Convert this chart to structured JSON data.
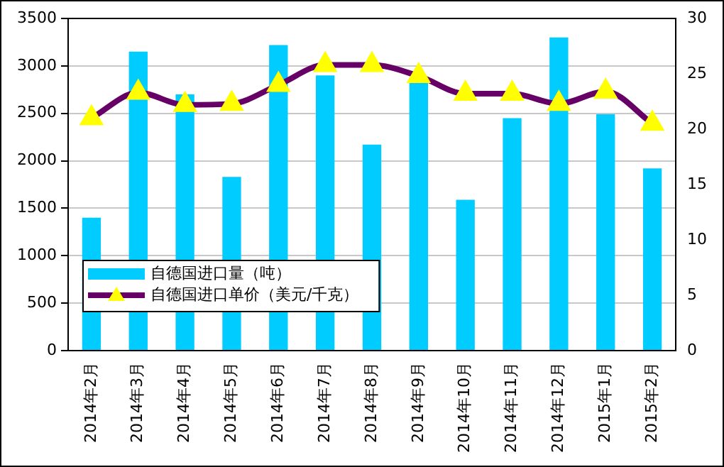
{
  "chart_data": {
    "type": "bar",
    "categories": [
      "2014年2月",
      "2014年3月",
      "2014年4月",
      "2014年5月",
      "2014年6月",
      "2014年7月",
      "2014年8月",
      "2014年9月",
      "2014年10月",
      "2014年11月",
      "2014年12月",
      "2015年1月",
      "2015年2月"
    ],
    "series": [
      {
        "name": "自德国进口量（吨）",
        "color": "#00ccff",
        "values": [
          1400,
          3150,
          2700,
          1830,
          3220,
          2900,
          2170,
          2820,
          1590,
          2450,
          3300,
          2490,
          1920
        ]
      },
      {
        "name": "自德国进口单价（美元/千克）",
        "type": "line",
        "axis": "y2",
        "color": "#660066",
        "values": [
          21,
          23.3,
          22.2,
          22.3,
          24,
          25.8,
          25.8,
          24.8,
          23.2,
          23.2,
          22.3,
          23.4,
          20.5
        ]
      }
    ],
    "ylim": [
      0,
      3500
    ],
    "yticks": [
      0,
      500,
      1000,
      1500,
      2000,
      2500,
      3000,
      3500
    ],
    "y2lim": [
      0,
      30
    ],
    "y2ticks": [
      0,
      5,
      10,
      15,
      20,
      25,
      30
    ],
    "grid": "y",
    "legend": "bottom left",
    "marker": "triangle",
    "line_style": "solid"
  }
}
